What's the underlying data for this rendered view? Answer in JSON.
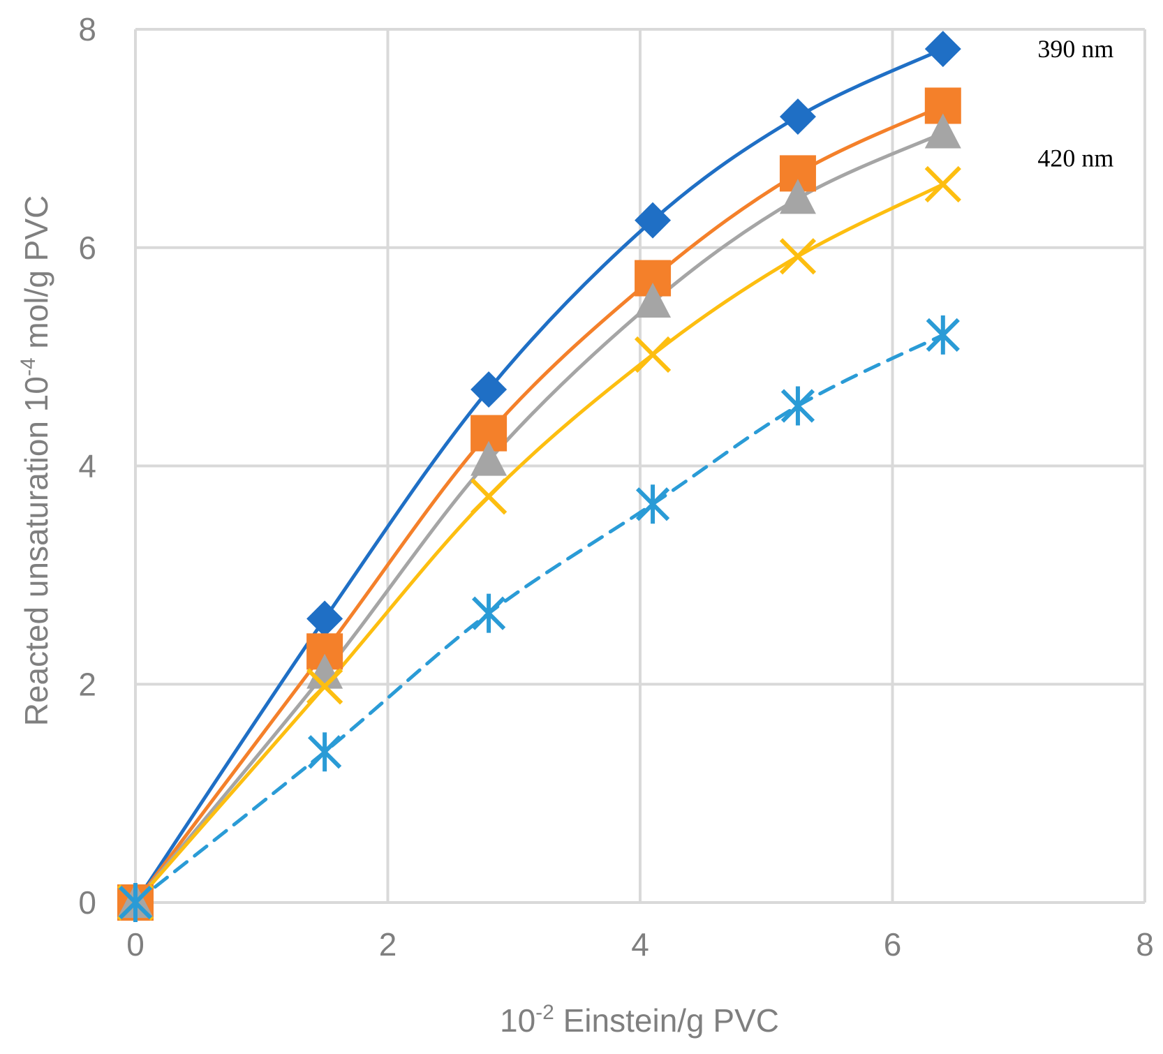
{
  "chart_data": {
    "type": "line",
    "xlabel": {
      "prefix": "10",
      "exp": "-2",
      "suffix": " Einstein/g PVC"
    },
    "ylabel": {
      "prefix": "Reacted unsaturation 10",
      "exp": "-4",
      "suffix": " mol/g PVC"
    },
    "xlim": [
      0,
      8
    ],
    "ylim": [
      0,
      8
    ],
    "xticks": [
      0,
      2,
      4,
      6,
      8
    ],
    "yticks": [
      0,
      2,
      4,
      6,
      8
    ],
    "grid": true,
    "x": [
      0,
      1.5,
      2.8,
      4.1,
      5.25,
      6.4
    ],
    "series": [
      {
        "marker": "diamond",
        "color": "#1f6fc5",
        "dashed": false,
        "values": [
          0,
          2.6,
          4.7,
          6.25,
          7.2,
          7.82
        ]
      },
      {
        "marker": "square",
        "color": "#f4802a",
        "dashed": false,
        "values": [
          0,
          2.3,
          4.3,
          5.72,
          6.68,
          7.3
        ]
      },
      {
        "marker": "triangle",
        "color": "#a5a5a5",
        "dashed": false,
        "values": [
          0,
          2.1,
          4.05,
          5.5,
          6.45,
          7.05
        ]
      },
      {
        "marker": "x",
        "color": "#fdbe10",
        "dashed": false,
        "values": [
          0,
          1.98,
          3.72,
          5.02,
          5.92,
          6.58
        ]
      },
      {
        "marker": "asterisk",
        "color": "#2a9bd6",
        "dashed": true,
        "values": [
          0,
          1.38,
          2.65,
          3.65,
          4.55,
          5.2
        ]
      }
    ],
    "annotations": [
      {
        "text": "390 nm",
        "x": 7.15,
        "y": 7.82
      },
      {
        "text": "420 nm",
        "x": 7.15,
        "y": 6.82
      }
    ]
  }
}
